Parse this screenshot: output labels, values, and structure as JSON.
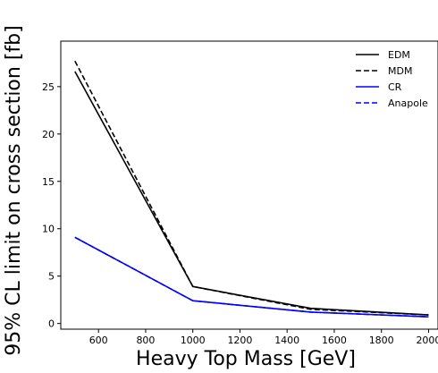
{
  "chart_data": {
    "type": "line",
    "title": "",
    "xlabel": "Heavy Top Mass [GeV]",
    "ylabel": "95% CL limit on cross section [fb]",
    "xlim": [
      440,
      2040
    ],
    "ylim": [
      -0.6,
      29.8
    ],
    "xticks": [
      600,
      800,
      1000,
      1200,
      1400,
      1600,
      1800,
      2000
    ],
    "yticks": [
      0,
      5,
      10,
      15,
      20,
      25
    ],
    "grid": false,
    "legend_position": "top-right",
    "series": [
      {
        "name": "EDM",
        "color": "#000000",
        "style": "solid",
        "x": [
          500,
          1000,
          1500,
          2000
        ],
        "y": [
          26.6,
          3.9,
          1.6,
          0.9
        ]
      },
      {
        "name": "MDM",
        "color": "#000000",
        "style": "dashed",
        "x": [
          500,
          1000,
          1500,
          2000
        ],
        "y": [
          27.7,
          3.9,
          1.5,
          0.9
        ]
      },
      {
        "name": "CR",
        "color": "#0000ff",
        "style": "solid",
        "x": [
          500,
          1000,
          1500,
          2000
        ],
        "y": [
          9.1,
          2.4,
          1.2,
          0.7
        ]
      },
      {
        "name": "Anapole",
        "color": "#0000ff",
        "style": "dashed",
        "x": [
          500,
          1000,
          1500,
          2000
        ],
        "y": [
          9.1,
          2.4,
          1.2,
          0.7
        ]
      }
    ]
  }
}
